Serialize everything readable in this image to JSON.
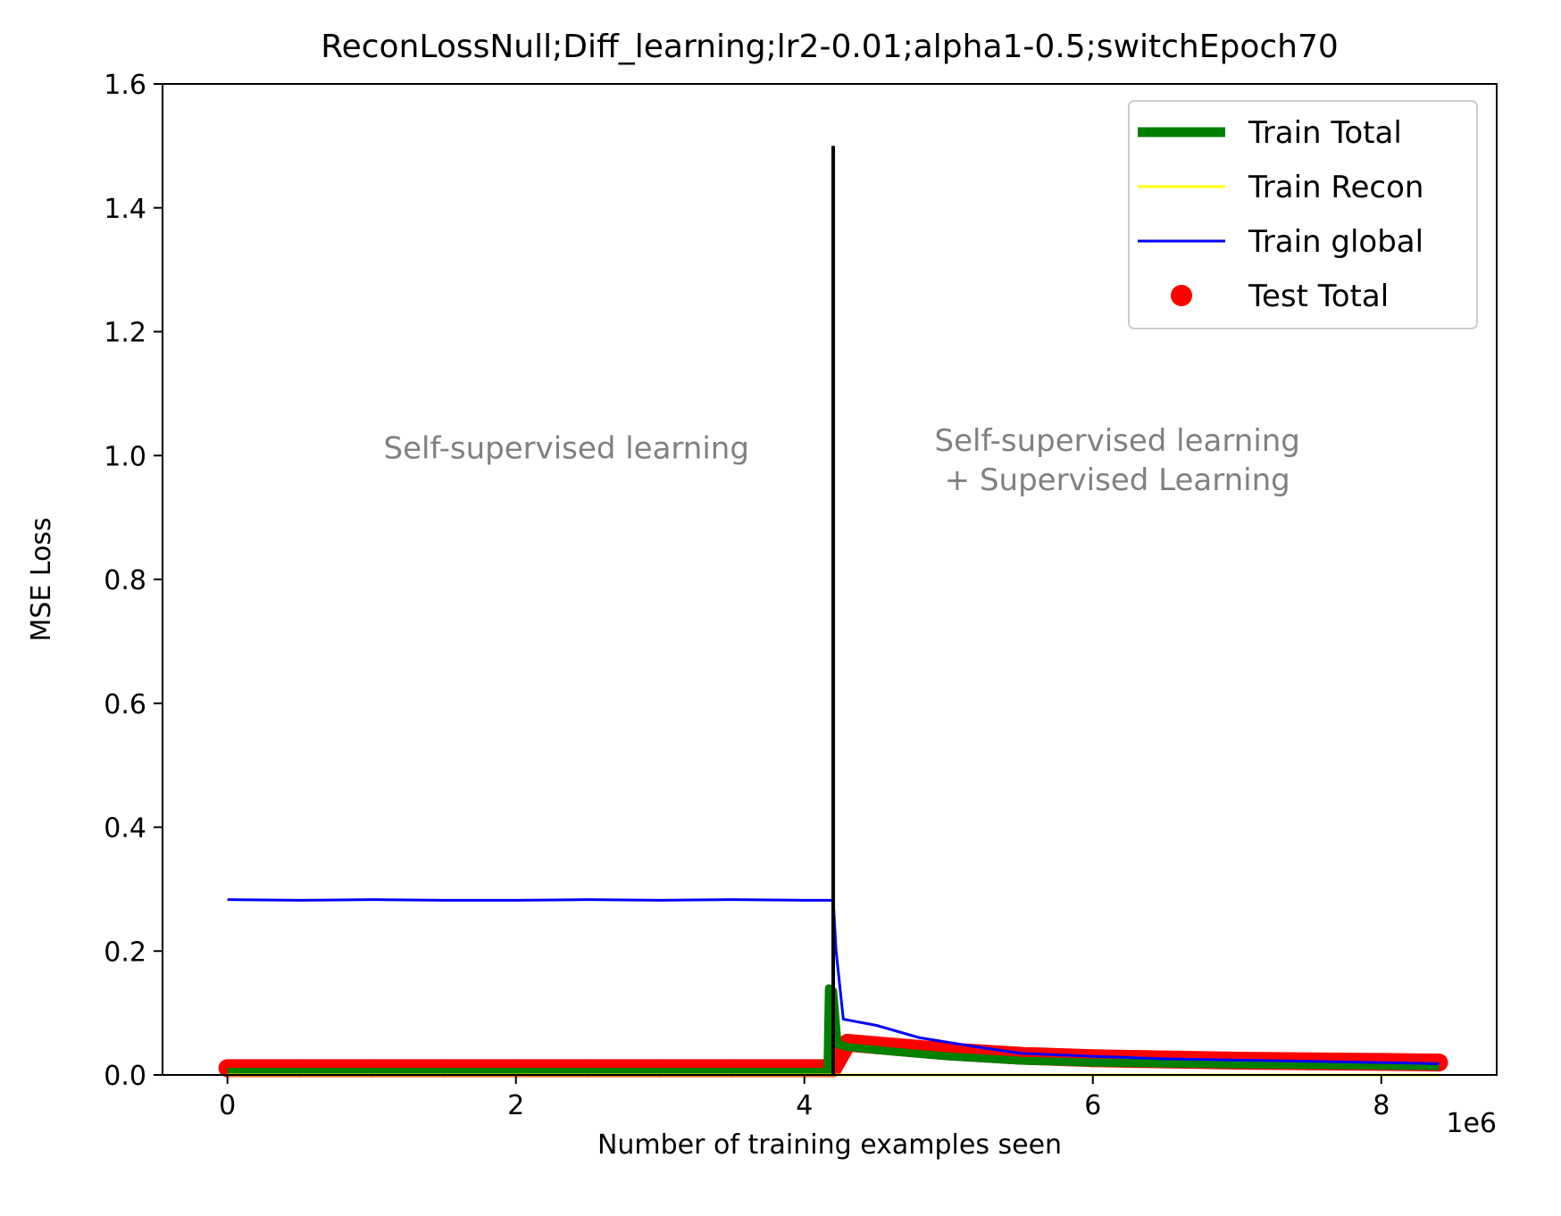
{
  "chart_data": {
    "type": "line",
    "title": "ReconLossNull;Diff_learning;lr2-0.01;alpha1-0.5;switchEpoch70",
    "xlabel": "Number of training examples seen",
    "ylabel": "MSE Loss",
    "x_offset_label": "1e6",
    "xlim": [
      -0.45,
      8.8
    ],
    "ylim": [
      0,
      1.6
    ],
    "xticks": [
      0,
      2,
      4,
      6,
      8
    ],
    "yticks": [
      0.0,
      0.2,
      0.4,
      0.6,
      0.8,
      1.0,
      1.2,
      1.4,
      1.6
    ],
    "xtick_labels": [
      "0",
      "2",
      "4",
      "6",
      "8"
    ],
    "ytick_labels": [
      "0.0",
      "0.2",
      "0.4",
      "0.6",
      "0.8",
      "1.0",
      "1.2",
      "1.4",
      "1.6"
    ],
    "grid": false,
    "legend_position": "top-right",
    "switch_line": {
      "x": 4.2,
      "y_top": 1.5,
      "color": "#000000"
    },
    "annotations": [
      {
        "lines": [
          "Self-supervised learning"
        ],
        "x": 2.35,
        "y": 1.01,
        "color": "#808080"
      },
      {
        "lines": [
          "Self-supervised learning",
          "+ Supervised Learning"
        ],
        "x": 6.17,
        "y": 0.99,
        "color": "#808080"
      }
    ],
    "series": [
      {
        "name": "Test Total",
        "kind": "scatter",
        "color": "#ff0000",
        "x": [
          0,
          0.5,
          1.0,
          1.5,
          2.0,
          2.5,
          3.0,
          3.5,
          4.0,
          4.2,
          4.3,
          4.5,
          5.0,
          5.5,
          6.0,
          6.5,
          7.0,
          7.5,
          8.0,
          8.4
        ],
        "y": [
          0.011,
          0.011,
          0.011,
          0.011,
          0.011,
          0.011,
          0.011,
          0.011,
          0.011,
          0.011,
          0.052,
          0.048,
          0.038,
          0.031,
          0.027,
          0.025,
          0.023,
          0.022,
          0.021,
          0.02
        ]
      },
      {
        "name": "Train Total",
        "kind": "line",
        "color": "#008000",
        "x": [
          0,
          1.0,
          2.0,
          3.0,
          4.0,
          4.16,
          4.17,
          4.2,
          4.23,
          4.3,
          4.6,
          5.0,
          5.5,
          6.0,
          7.0,
          8.0,
          8.4
        ],
        "y": [
          0.005,
          0.005,
          0.005,
          0.005,
          0.005,
          0.005,
          0.14,
          0.135,
          0.05,
          0.045,
          0.038,
          0.03,
          0.023,
          0.02,
          0.017,
          0.015,
          0.014
        ]
      },
      {
        "name": "Train Recon",
        "kind": "line",
        "color": "#ffff00",
        "x": [
          0,
          2.0,
          4.0,
          4.2,
          6.0,
          8.4
        ],
        "y": [
          0.0,
          0.0,
          0.0,
          0.0,
          0.0,
          0.0
        ]
      },
      {
        "name": "Train global",
        "kind": "line",
        "color": "#0000ff",
        "x": [
          0,
          0.5,
          1.0,
          1.5,
          2.0,
          2.5,
          3.0,
          3.5,
          4.0,
          4.2,
          4.22,
          4.27,
          4.5,
          4.8,
          5.2,
          5.5,
          6.0,
          6.5,
          7.0,
          7.5,
          8.0,
          8.4
        ],
        "y": [
          0.283,
          0.282,
          0.283,
          0.282,
          0.282,
          0.283,
          0.282,
          0.283,
          0.282,
          0.282,
          0.2,
          0.09,
          0.08,
          0.06,
          0.045,
          0.035,
          0.03,
          0.026,
          0.024,
          0.022,
          0.02,
          0.018
        ]
      }
    ]
  }
}
